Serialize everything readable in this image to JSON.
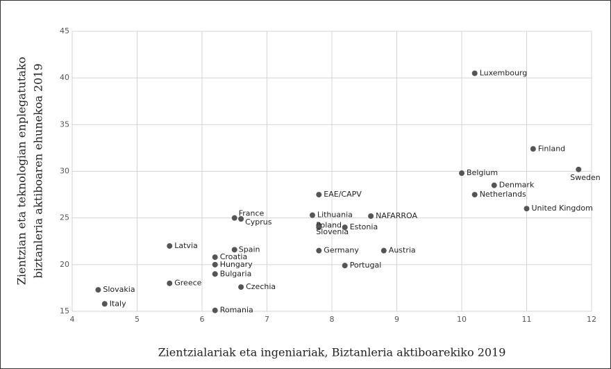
{
  "chart_data": {
    "type": "scatter",
    "xlabel": "Zientzialariak eta ingeniariak, Biztanleria aktiboarekiko 2019",
    "ylabel": [
      "Zientzian eta teknologian enplegatutako",
      "biztanleria aktiboaren ehunekoa 2019"
    ],
    "xlim": [
      4,
      12
    ],
    "xticks": [
      4,
      5,
      6,
      7,
      8,
      9,
      10,
      11,
      12
    ],
    "ylim": [
      15,
      45
    ],
    "yticks": [
      15,
      20,
      25,
      30,
      35,
      40,
      45
    ],
    "grid": true,
    "color": "#555555",
    "labels": [
      "Luxembourg",
      "Finland",
      "Sweden",
      "Belgium",
      "Denmark",
      "Netherlands",
      "United Kingdom",
      "EAE/CAPV",
      "NAFARROA",
      "Lithuania",
      "Poland",
      "Slovenia",
      "Estonia",
      "France",
      "Cyprus",
      "Latvia",
      "Spain",
      "Germany",
      "Austria",
      "Croatia",
      "Hungary",
      "Portugal",
      "Bulgaria",
      "Greece",
      "Czechia",
      "Slovakia",
      "Italy",
      "Romania"
    ],
    "x": [
      10.2,
      11.1,
      11.8,
      10.0,
      10.5,
      10.2,
      11.0,
      7.8,
      8.6,
      7.7,
      7.8,
      7.8,
      8.2,
      6.5,
      6.6,
      5.5,
      6.5,
      7.8,
      8.8,
      6.2,
      6.2,
      8.2,
      6.2,
      5.5,
      6.6,
      4.4,
      4.5,
      6.2
    ],
    "values": [
      40.5,
      32.4,
      30.2,
      29.8,
      28.5,
      27.5,
      26.0,
      27.5,
      25.2,
      25.3,
      24.2,
      24.0,
      24.0,
      25.0,
      24.9,
      22.0,
      21.6,
      21.5,
      21.5,
      20.8,
      20.0,
      19.9,
      19.0,
      18.0,
      17.6,
      17.3,
      15.8,
      15.1
    ]
  }
}
